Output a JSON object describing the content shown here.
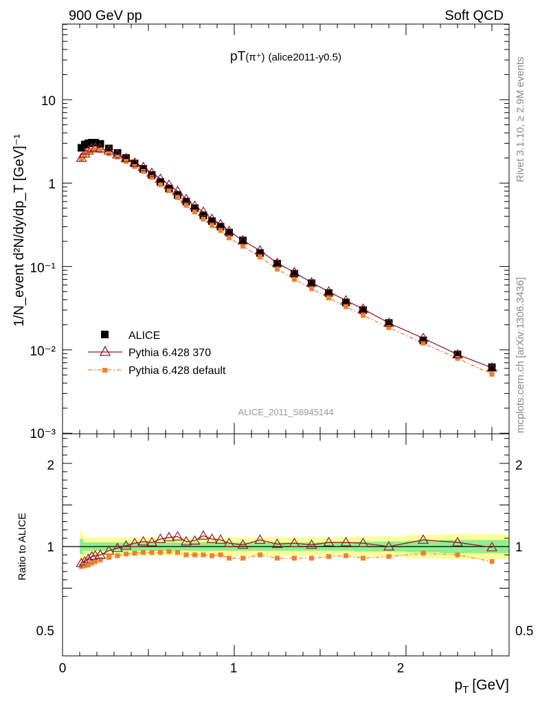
{
  "header": {
    "left": "900 GeV pp",
    "right": "Soft QCD"
  },
  "side_labels": {
    "rivet": "Rivet 3.1.10, ≥ 2.9M events",
    "mcplots": "mcplots.cern.ch [arXiv:1306.3436]"
  },
  "plot": {
    "title_main": "pT",
    "title_particle": "(π⁺)",
    "title_tag": "(alice2011-y0.5)",
    "analysis_id": "ALICE_2011_S8945144"
  },
  "chart_data": [
    {
      "type": "scatter",
      "scale": "log",
      "xlabel_main": "p",
      "xlabel_sub": "T",
      "xlabel_unit": "[GeV]",
      "ylabel": "1/N_event d²N/dy/dp_T [GeV]⁻¹",
      "xlim": [
        0,
        2.6
      ],
      "ylim": [
        0.001,
        40
      ],
      "x_ticks": [
        "0",
        "1",
        "2"
      ],
      "y_ticks": [
        "10",
        "1",
        "10⁻¹",
        "10⁻²",
        "10⁻³"
      ],
      "legend_placement": "bottom-left",
      "x": [
        0.11,
        0.13,
        0.15,
        0.17,
        0.19,
        0.22,
        0.27,
        0.32,
        0.37,
        0.42,
        0.47,
        0.52,
        0.57,
        0.62,
        0.67,
        0.72,
        0.77,
        0.82,
        0.87,
        0.92,
        0.97,
        1.05,
        1.15,
        1.25,
        1.35,
        1.45,
        1.55,
        1.65,
        1.75,
        1.9,
        2.1,
        2.3,
        2.5
      ],
      "series": [
        {
          "name": "ALICE",
          "color": "#000000",
          "marker": "square",
          "values": [
            2.65,
            2.9,
            3.0,
            3.05,
            3.05,
            2.95,
            2.6,
            2.3,
            2.0,
            1.72,
            1.48,
            1.25,
            1.03,
            0.86,
            0.72,
            0.6,
            0.5,
            0.41,
            0.35,
            0.3,
            0.255,
            0.205,
            0.145,
            0.108,
            0.082,
            0.063,
            0.048,
            0.037,
            0.03,
            0.021,
            0.013,
            0.0088,
            0.0062
          ]
        },
        {
          "name": "Pythia 6.428 370",
          "color": "#8b1a2e",
          "marker": "triangle",
          "values": [
            2.0,
            2.25,
            2.45,
            2.6,
            2.65,
            2.6,
            2.45,
            2.2,
            1.98,
            1.75,
            1.55,
            1.32,
            1.12,
            0.95,
            0.8,
            0.64,
            0.53,
            0.45,
            0.37,
            0.32,
            0.265,
            0.205,
            0.155,
            0.11,
            0.085,
            0.064,
            0.05,
            0.039,
            0.031,
            0.021,
            0.0138,
            0.0088,
            0.0061
          ]
        },
        {
          "name": "Pythia 6.428 default",
          "color": "#f08030",
          "marker": "square-small",
          "values": [
            1.95,
            2.15,
            2.35,
            2.45,
            2.5,
            2.45,
            2.25,
            2.05,
            1.82,
            1.58,
            1.38,
            1.17,
            0.96,
            0.81,
            0.67,
            0.54,
            0.45,
            0.37,
            0.31,
            0.27,
            0.22,
            0.175,
            0.13,
            0.093,
            0.07,
            0.054,
            0.042,
            0.033,
            0.026,
            0.0185,
            0.012,
            0.0079,
            0.0051
          ]
        }
      ]
    },
    {
      "type": "scatter",
      "scale": "linear",
      "ylabel": "Ratio to ALICE",
      "xlim": [
        0,
        2.6
      ],
      "ylim": [
        0.35,
        2.3
      ],
      "y_ticks": [
        "2",
        "1",
        "0.5"
      ],
      "band_green_halfwidth": [
        0.09,
        0.05,
        0.05,
        0.05,
        0.05,
        0.05,
        0.05,
        0.05,
        0.05,
        0.05,
        0.05,
        0.05,
        0.05,
        0.05,
        0.05,
        0.05,
        0.05,
        0.05,
        0.05,
        0.05,
        0.05,
        0.05,
        0.05,
        0.05,
        0.05,
        0.05,
        0.05,
        0.05,
        0.06,
        0.06,
        0.07,
        0.08,
        0.08
      ],
      "band_yellow_halfwidth": [
        0.18,
        0.11,
        0.11,
        0.11,
        0.11,
        0.11,
        0.11,
        0.11,
        0.11,
        0.11,
        0.11,
        0.11,
        0.11,
        0.11,
        0.11,
        0.11,
        0.11,
        0.11,
        0.11,
        0.11,
        0.11,
        0.11,
        0.11,
        0.11,
        0.11,
        0.11,
        0.11,
        0.11,
        0.12,
        0.12,
        0.14,
        0.15,
        0.15
      ],
      "series": [
        {
          "name": "Pythia 6.428 370",
          "color": "#8b1a2e",
          "values": [
            0.8,
            0.82,
            0.85,
            0.88,
            0.89,
            0.9,
            0.95,
            0.98,
            1.01,
            1.04,
            1.06,
            1.05,
            1.09,
            1.11,
            1.12,
            1.06,
            1.07,
            1.13,
            1.09,
            1.08,
            1.04,
            1.02,
            1.08,
            1.03,
            1.04,
            1.02,
            1.05,
            1.05,
            1.04,
            1.0,
            1.08,
            1.05,
            0.99
          ]
        },
        {
          "name": "Pythia 6.428 default",
          "color": "#f08030",
          "values": [
            0.76,
            0.77,
            0.78,
            0.8,
            0.82,
            0.84,
            0.87,
            0.89,
            0.91,
            0.92,
            0.93,
            0.93,
            0.93,
            0.94,
            0.93,
            0.9,
            0.9,
            0.9,
            0.89,
            0.9,
            0.86,
            0.86,
            0.9,
            0.86,
            0.86,
            0.86,
            0.88,
            0.89,
            0.86,
            0.88,
            0.92,
            0.9,
            0.82
          ]
        }
      ]
    }
  ]
}
